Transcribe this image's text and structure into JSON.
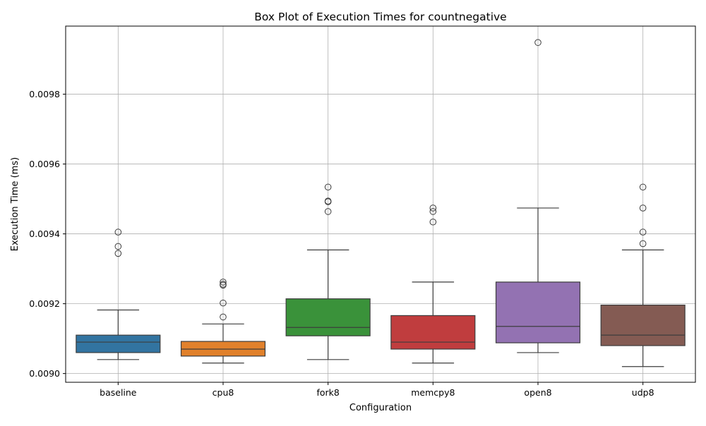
{
  "chart_data": {
    "type": "box",
    "title": "Box Plot of Execution Times for countnegative",
    "xlabel": "Configuration",
    "ylabel": "Execution Time (ms)",
    "ylim": [
      0.008975,
      0.009995
    ],
    "y_ticks": [
      0.009,
      0.0092,
      0.0094,
      0.0096,
      0.0098
    ],
    "y_tick_labels": [
      "0.0090",
      "0.0092",
      "0.0094",
      "0.0096",
      "0.0098"
    ],
    "grid": true,
    "categories": [
      "baseline",
      "cpu8",
      "fork8",
      "memcpy8",
      "open8",
      "udp8"
    ],
    "series": [
      {
        "category": "baseline",
        "color": "#3274a1",
        "whisker_low": 0.00904,
        "q1": 0.00906,
        "median": 0.00909,
        "q3": 0.00911,
        "whisker_high": 0.009182,
        "outliers": [
          0.009344,
          0.009364,
          0.009405
        ]
      },
      {
        "category": "cpu8",
        "color": "#e1812c",
        "whisker_low": 0.00903,
        "q1": 0.00905,
        "median": 0.00907,
        "q3": 0.009092,
        "whisker_high": 0.009142,
        "outliers": [
          0.009162,
          0.009202,
          0.009253,
          0.009256,
          0.009262
        ]
      },
      {
        "category": "fork8",
        "color": "#3a923a",
        "whisker_low": 0.00904,
        "q1": 0.009108,
        "median": 0.009132,
        "q3": 0.009214,
        "whisker_high": 0.009354,
        "outliers": [
          0.009464,
          0.009492,
          0.009494,
          0.009534
        ]
      },
      {
        "category": "memcpy8",
        "color": "#c03d3e",
        "whisker_low": 0.00903,
        "q1": 0.00907,
        "median": 0.00909,
        "q3": 0.009166,
        "whisker_high": 0.009262,
        "outliers": [
          0.009434,
          0.009464,
          0.009474
        ]
      },
      {
        "category": "open8",
        "color": "#9372b2",
        "whisker_low": 0.00906,
        "q1": 0.009088,
        "median": 0.009135,
        "q3": 0.009262,
        "whisker_high": 0.009474,
        "outliers": [
          0.009948
        ]
      },
      {
        "category": "udp8",
        "color": "#845b53",
        "whisker_low": 0.00902,
        "q1": 0.00908,
        "median": 0.00911,
        "q3": 0.009196,
        "whisker_high": 0.009354,
        "outliers": [
          0.009372,
          0.009405,
          0.009474,
          0.009534
        ]
      }
    ]
  }
}
